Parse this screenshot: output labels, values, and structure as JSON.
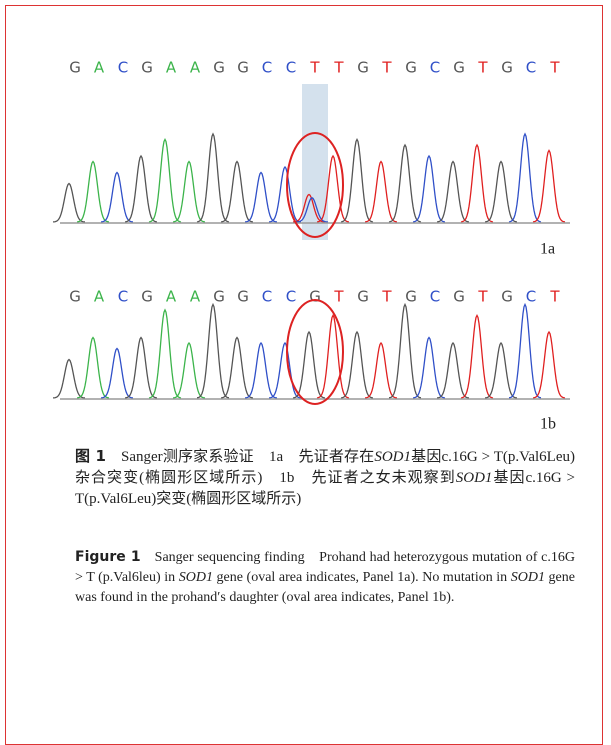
{
  "base_colors": {
    "G": "#555555",
    "A": "#3cb44b",
    "C": "#3050c8",
    "T": "#e02020"
  },
  "panels": [
    {
      "label": "1a",
      "sequence": [
        "G",
        "A",
        "C",
        "G",
        "A",
        "A",
        "G",
        "G",
        "C",
        "C",
        "T",
        "T",
        "G",
        "T",
        "G",
        "C",
        "G",
        "T",
        "G",
        "C",
        "T"
      ]
    },
    {
      "label": "1b",
      "sequence": [
        "G",
        "A",
        "C",
        "G",
        "A",
        "A",
        "G",
        "G",
        "C",
        "C",
        "G",
        "T",
        "G",
        "T",
        "G",
        "C",
        "G",
        "T",
        "G",
        "C",
        "T"
      ]
    }
  ],
  "caption_zh": {
    "label": "图 1",
    "parts": [
      "Sanger测序家系验证　1a　先证者存在",
      {
        "text": "SOD1",
        "italic": true
      },
      "基因c.16G > T(p.Val6Leu)杂合突变(椭圆形区域所示)　1b　先证者之女未观察到",
      {
        "text": "SOD1",
        "italic": true
      },
      "基因c.16G > T(p.Val6Leu)突变(椭圆形区域所示)"
    ]
  },
  "caption_en": {
    "label": "Figure 1",
    "parts": [
      "Sanger sequencing finding　Prohand had heterozygous mutation of c.16G > T (p.Val6leu) in ",
      {
        "text": "SOD1",
        "italic": true
      },
      " gene (oval area indicates, Panel 1a). No mutation in ",
      {
        "text": "SOD1",
        "italic": true
      },
      " gene was found in the prohand′s daughter (oval area indicates, Panel 1b)."
    ]
  }
}
